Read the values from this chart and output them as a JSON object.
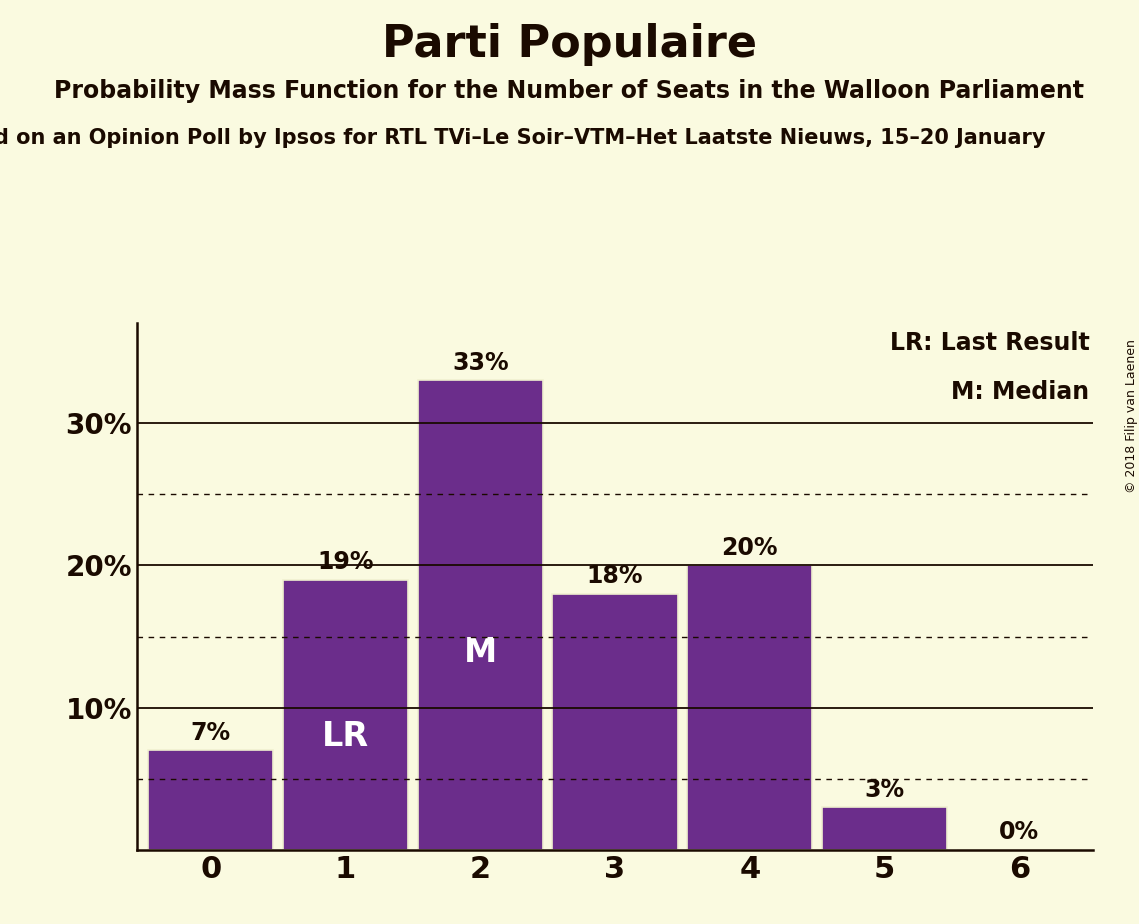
{
  "title": "Parti Populaire",
  "subtitle": "Probability Mass Function for the Number of Seats in the Walloon Parliament",
  "subtitle2": "d on an Opinion Poll by Ipsos for RTL TVi–Le Soir–VTM–Het Laatste Nieuws, 15–20 January",
  "copyright": "© 2018 Filip van Laenen",
  "categories": [
    0,
    1,
    2,
    3,
    4,
    5,
    6
  ],
  "values": [
    7,
    19,
    33,
    18,
    20,
    3,
    0
  ],
  "bar_color": "#6b2d8b",
  "bar_edgecolor": "#f0f0d0",
  "background_color": "#fafae0",
  "text_color": "#1a0a00",
  "yticks": [
    10,
    20,
    30
  ],
  "ylim": [
    0,
    37
  ],
  "lr_bar": 1,
  "median_bar": 2,
  "legend_lr": "LR: Last Result",
  "legend_m": "M: Median",
  "dotted_lines": [
    5,
    15,
    25
  ],
  "solid_lines": [
    10,
    20,
    30
  ],
  "title_fontsize": 32,
  "subtitle_fontsize": 17,
  "subtitle2_fontsize": 15,
  "ytick_fontsize": 20,
  "xtick_fontsize": 22,
  "bar_label_fontsize": 17,
  "inner_label_fontsize": 24,
  "legend_fontsize": 17
}
